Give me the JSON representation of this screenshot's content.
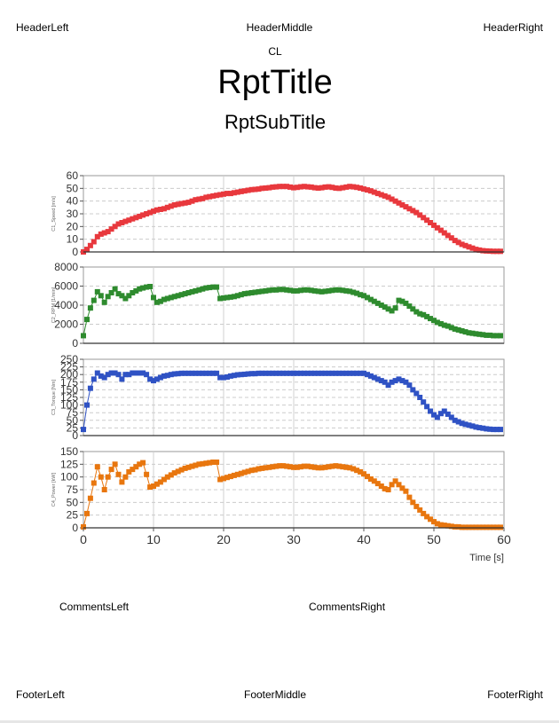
{
  "header": {
    "left": "HeaderLeft",
    "middle": "HeaderMiddle",
    "right": "HeaderRight"
  },
  "cl_label": "CL",
  "title": "RptTitle",
  "subtitle": "RptSubTitle",
  "comments": {
    "left": "CommentsLeft",
    "right": "CommentsRight"
  },
  "footer": {
    "left": "FooterLeft",
    "middle": "FooterMiddle",
    "right": "FooterRight"
  },
  "chart_data": [
    {
      "type": "line",
      "ylabel": "C1_Speed [m/s]",
      "color": "#e8383d",
      "ylim": [
        0,
        60
      ],
      "yticks": [
        0,
        10,
        20,
        30,
        40,
        50,
        60
      ],
      "xlim": [
        0,
        60
      ],
      "grid": true,
      "series": [
        {
          "x": [
            0,
            0.5,
            1,
            1.5,
            2,
            2.5,
            3,
            3.5,
            4,
            4.5,
            5,
            5.5,
            6,
            6.5,
            7,
            7.5,
            8,
            8.5,
            9,
            9.5,
            10,
            10.5,
            11,
            11.5,
            12,
            12.5,
            13,
            13.5,
            14,
            14.5,
            15,
            15.5,
            16,
            16.5,
            17,
            17.5,
            18,
            18.5,
            19,
            19.5,
            20,
            20.5,
            21,
            21.5,
            22,
            22.5,
            23,
            23.5,
            24,
            24.5,
            25,
            25.5,
            26,
            26.5,
            27,
            27.5,
            28,
            28.5,
            29,
            29.5,
            30,
            30.5,
            31,
            31.5,
            32,
            32.5,
            33,
            33.5,
            34,
            34.5,
            35,
            35.5,
            36,
            36.5,
            37,
            37.5,
            38,
            38.5,
            39,
            39.5,
            40,
            40.5,
            41,
            41.5,
            42,
            42.5,
            43,
            43.5,
            44,
            44.5,
            45,
            45.5,
            46,
            46.5,
            47,
            47.5,
            48,
            48.5,
            49,
            49.5,
            50,
            50.5,
            51,
            51.5,
            52,
            52.5,
            53,
            53.5,
            54,
            54.5,
            55,
            55.5,
            56,
            56.5,
            57,
            57.5,
            58,
            58.5,
            59,
            59.5
          ],
          "values": [
            0,
            2,
            5,
            8,
            12,
            14,
            15,
            16,
            18,
            20,
            22,
            23,
            24,
            25,
            26,
            27,
            28,
            29,
            30,
            31,
            32,
            33,
            33.5,
            34,
            35,
            36,
            37,
            37.5,
            38,
            38.5,
            39,
            40,
            41,
            41.5,
            42,
            43,
            43.5,
            44,
            44.5,
            45,
            45.5,
            46,
            46,
            46.5,
            47,
            47.5,
            48,
            48.5,
            49,
            49.2,
            49.5,
            50,
            50.2,
            50.5,
            51,
            51.2,
            51.5,
            51.5,
            51.5,
            51,
            50.5,
            50.8,
            51.2,
            51.5,
            51.2,
            51,
            50.5,
            50.2,
            50.5,
            51,
            51.2,
            50.8,
            50.2,
            50,
            50.5,
            51,
            51.5,
            51.2,
            50.8,
            50.2,
            49.5,
            48.8,
            48,
            47,
            46,
            45,
            44,
            43,
            41.5,
            40,
            38.5,
            37,
            35.5,
            34,
            32.5,
            31,
            29,
            27,
            25,
            23,
            21,
            19,
            17,
            15,
            13,
            11,
            9,
            7.5,
            6,
            5,
            4,
            3,
            2,
            1.5,
            1,
            0.8,
            0.6,
            0.5,
            0.5,
            0.5
          ]
        }
      ]
    },
    {
      "type": "line",
      "ylabel": "C2_RPM [1/min]",
      "color": "#2e8b2e",
      "ylim": [
        0,
        8000
      ],
      "yticks": [
        0,
        2000,
        4000,
        6000,
        8000
      ],
      "xlim": [
        0,
        60
      ],
      "grid": true,
      "series": [
        {
          "x": [
            0,
            0.5,
            1,
            1.5,
            2,
            2.5,
            3,
            3.5,
            4,
            4.5,
            5,
            5.5,
            6,
            6.5,
            7,
            7.5,
            8,
            8.5,
            9,
            9.5,
            10,
            10.5,
            11,
            11.5,
            12,
            12.5,
            13,
            13.5,
            14,
            14.5,
            15,
            15.5,
            16,
            16.5,
            17,
            17.5,
            18,
            18.5,
            19,
            19.5,
            20,
            20.5,
            21,
            21.5,
            22,
            22.5,
            23,
            23.5,
            24,
            24.5,
            25,
            25.5,
            26,
            26.5,
            27,
            27.5,
            28,
            28.5,
            29,
            29.5,
            30,
            30.5,
            31,
            31.5,
            32,
            32.5,
            33,
            33.5,
            34,
            34.5,
            35,
            35.5,
            36,
            36.5,
            37,
            37.5,
            38,
            38.5,
            39,
            39.5,
            40,
            40.5,
            41,
            41.5,
            42,
            42.5,
            43,
            43.5,
            44,
            44.5,
            45,
            45.5,
            46,
            46.5,
            47,
            47.5,
            48,
            48.5,
            49,
            49.5,
            50,
            50.5,
            51,
            51.5,
            52,
            52.5,
            53,
            53.5,
            54,
            54.5,
            55,
            55.5,
            56,
            56.5,
            57,
            57.5,
            58,
            58.5,
            59,
            59.5
          ],
          "values": [
            800,
            2500,
            3700,
            4500,
            5400,
            5000,
            4300,
            4900,
            5300,
            5700,
            5200,
            5000,
            4700,
            5000,
            5300,
            5500,
            5700,
            5800,
            5900,
            5950,
            4800,
            4300,
            4400,
            4600,
            4700,
            4800,
            4900,
            5000,
            5100,
            5200,
            5300,
            5400,
            5500,
            5600,
            5700,
            5800,
            5850,
            5900,
            5900,
            4700,
            4750,
            4800,
            4850,
            4900,
            5000,
            5100,
            5200,
            5250,
            5300,
            5350,
            5400,
            5450,
            5500,
            5550,
            5600,
            5600,
            5650,
            5650,
            5600,
            5550,
            5500,
            5500,
            5550,
            5600,
            5600,
            5550,
            5500,
            5450,
            5400,
            5450,
            5500,
            5550,
            5600,
            5600,
            5550,
            5500,
            5450,
            5350,
            5250,
            5100,
            5000,
            4800,
            4600,
            4400,
            4200,
            4000,
            3800,
            3600,
            3400,
            3700,
            4500,
            4400,
            4200,
            3900,
            3600,
            3300,
            3100,
            3000,
            2800,
            2600,
            2400,
            2200,
            2050,
            1900,
            1800,
            1650,
            1500,
            1400,
            1300,
            1200,
            1100,
            1050,
            1000,
            950,
            900,
            850,
            850,
            800,
            800,
            800
          ]
        }
      ]
    },
    {
      "type": "line",
      "ylabel": "C3_Torque [Nm]",
      "color": "#2f52c4",
      "ylim": [
        0,
        250
      ],
      "yticks": [
        0,
        25,
        50,
        75,
        100,
        125,
        150,
        175,
        200,
        225,
        250
      ],
      "xlim": [
        0,
        60
      ],
      "grid": true,
      "series": [
        {
          "x": [
            0,
            0.5,
            1,
            1.5,
            2,
            2.5,
            3,
            3.5,
            4,
            4.5,
            5,
            5.5,
            6,
            6.5,
            7,
            7.5,
            8,
            8.5,
            9,
            9.5,
            10,
            10.5,
            11,
            11.5,
            12,
            12.5,
            13,
            13.5,
            14,
            14.5,
            15,
            15.5,
            16,
            16.5,
            17,
            17.5,
            18,
            18.5,
            19,
            19.5,
            20,
            20.5,
            21,
            21.5,
            22,
            22.5,
            23,
            23.5,
            24,
            24.5,
            25,
            25.5,
            26,
            26.5,
            27,
            27.5,
            28,
            28.5,
            29,
            29.5,
            30,
            30.5,
            31,
            31.5,
            32,
            32.5,
            33,
            33.5,
            34,
            34.5,
            35,
            35.5,
            36,
            36.5,
            37,
            37.5,
            38,
            38.5,
            39,
            39.5,
            40,
            40.5,
            41,
            41.5,
            42,
            42.5,
            43,
            43.5,
            44,
            44.5,
            45,
            45.5,
            46,
            46.5,
            47,
            47.5,
            48,
            48.5,
            49,
            49.5,
            50,
            50.5,
            51,
            51.5,
            52,
            52.5,
            53,
            53.5,
            54,
            54.5,
            55,
            55.5,
            56,
            56.5,
            57,
            57.5,
            58,
            58.5,
            59,
            59.5
          ],
          "values": [
            20,
            100,
            155,
            185,
            205,
            195,
            190,
            200,
            205,
            205,
            200,
            185,
            200,
            200,
            205,
            205,
            205,
            205,
            200,
            185,
            180,
            185,
            190,
            195,
            197,
            200,
            202,
            203,
            204,
            204,
            204,
            204,
            204,
            204,
            204,
            204,
            204,
            204,
            204,
            190,
            190,
            192,
            195,
            197,
            199,
            200,
            201,
            202,
            203,
            203,
            204,
            204,
            204,
            204,
            204,
            204,
            204,
            204,
            204,
            204,
            204,
            204,
            204,
            204,
            204,
            204,
            204,
            204,
            204,
            204,
            204,
            204,
            204,
            204,
            204,
            204,
            204,
            204,
            204,
            204,
            204,
            200,
            195,
            190,
            185,
            180,
            175,
            165,
            175,
            180,
            185,
            180,
            175,
            165,
            150,
            138,
            125,
            110,
            95,
            80,
            68,
            60,
            72,
            80,
            70,
            60,
            50,
            45,
            40,
            37,
            34,
            31,
            28,
            26,
            24,
            22,
            21,
            20,
            20,
            20
          ]
        }
      ]
    },
    {
      "type": "line",
      "ylabel": "C4_Power [kW]",
      "color": "#e8760e",
      "ylim": [
        0,
        150
      ],
      "yticks": [
        0,
        25,
        50,
        75,
        100,
        125,
        150
      ],
      "xlim": [
        0,
        60
      ],
      "xticks": [
        0,
        10,
        20,
        30,
        40,
        50,
        60
      ],
      "xlabel": "Time [s]",
      "grid": true,
      "series": [
        {
          "x": [
            0,
            0.5,
            1,
            1.5,
            2,
            2.5,
            3,
            3.5,
            4,
            4.5,
            5,
            5.5,
            6,
            6.5,
            7,
            7.5,
            8,
            8.5,
            9,
            9.5,
            10,
            10.5,
            11,
            11.5,
            12,
            12.5,
            13,
            13.5,
            14,
            14.5,
            15,
            15.5,
            16,
            16.5,
            17,
            17.5,
            18,
            18.5,
            19,
            19.5,
            20,
            20.5,
            21,
            21.5,
            22,
            22.5,
            23,
            23.5,
            24,
            24.5,
            25,
            25.5,
            26,
            26.5,
            27,
            27.5,
            28,
            28.5,
            29,
            29.5,
            30,
            30.5,
            31,
            31.5,
            32,
            32.5,
            33,
            33.5,
            34,
            34.5,
            35,
            35.5,
            36,
            36.5,
            37,
            37.5,
            38,
            38.5,
            39,
            39.5,
            40,
            40.5,
            41,
            41.5,
            42,
            42.5,
            43,
            43.5,
            44,
            44.5,
            45,
            45.5,
            46,
            46.5,
            47,
            47.5,
            48,
            48.5,
            49,
            49.5,
            50,
            50.5,
            51,
            51.5,
            52,
            52.5,
            53,
            53.5,
            54,
            54.5,
            55,
            55.5,
            56,
            56.5,
            57,
            57.5,
            58,
            58.5,
            59,
            59.5
          ],
          "values": [
            2,
            28,
            58,
            88,
            120,
            100,
            75,
            100,
            115,
            125,
            105,
            90,
            100,
            110,
            115,
            120,
            125,
            128,
            105,
            80,
            82,
            86,
            90,
            95,
            100,
            104,
            108,
            111,
            114,
            117,
            119,
            121,
            123,
            125,
            126,
            127,
            128,
            129,
            129,
            95,
            97,
            99,
            101,
            103,
            105,
            107,
            109,
            111,
            113,
            114,
            116,
            117,
            118,
            119,
            120,
            121,
            122,
            122,
            121,
            120,
            119,
            119,
            120,
            121,
            121,
            120,
            119,
            118,
            118,
            119,
            120,
            121,
            122,
            121,
            120,
            119,
            118,
            116,
            113,
            110,
            106,
            101,
            96,
            92,
            87,
            82,
            77,
            75,
            85,
            92,
            85,
            78,
            72,
            60,
            50,
            42,
            35,
            28,
            22,
            17,
            12,
            8,
            6,
            5,
            4,
            3,
            2,
            2,
            1,
            1,
            1,
            1,
            1,
            1,
            1,
            1,
            1,
            1,
            1,
            1
          ]
        }
      ]
    }
  ]
}
